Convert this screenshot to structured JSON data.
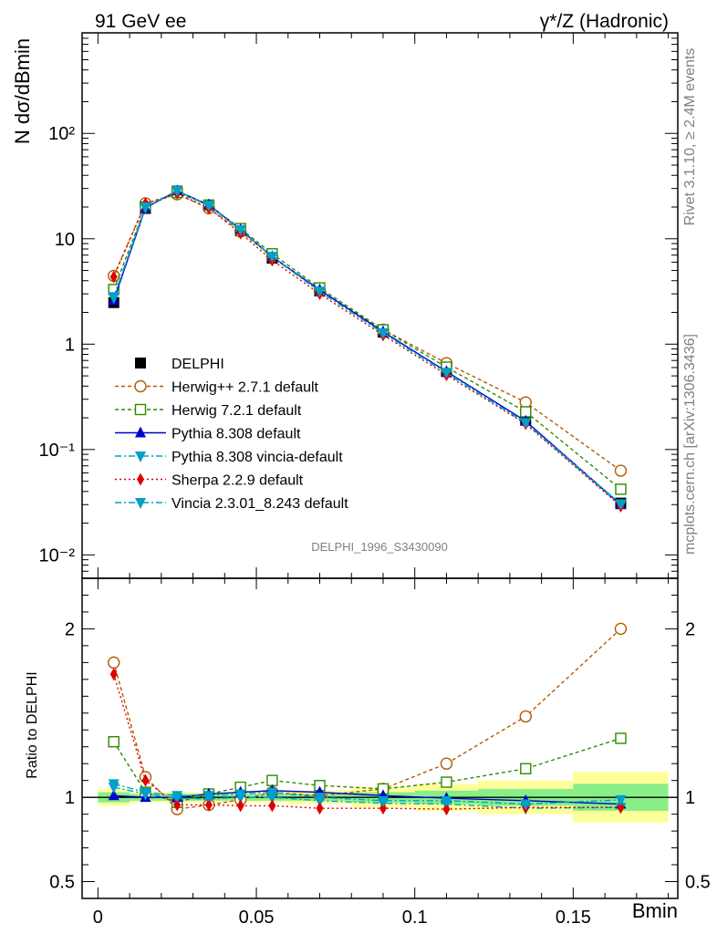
{
  "header": {
    "left": "91 GeV ee",
    "right": "γ*/Z (Hadronic)"
  },
  "side_labels": {
    "rivet": "Rivet 3.1.10, ≥ 2.4M events",
    "mcplots": "mcplots.cern.ch [arXiv:1306.3436]"
  },
  "analysis_label": "DELPHI_1996_S3430090",
  "chart_data": [
    {
      "type": "line",
      "panel": "main",
      "ylabel": "N dσ/dBmin",
      "yscale": "log",
      "ylim": [
        0.006,
        900
      ],
      "xlim": [
        -0.005,
        0.183
      ],
      "y_ticks": [
        {
          "value": 0.01,
          "label": "10⁻²"
        },
        {
          "value": 0.1,
          "label": "10⁻¹"
        },
        {
          "value": 1,
          "label": "1"
        },
        {
          "value": 10,
          "label": "10"
        },
        {
          "value": 100,
          "label": "10²"
        }
      ],
      "x": [
        0.005,
        0.015,
        0.025,
        0.035,
        0.045,
        0.055,
        0.07,
        0.09,
        0.11,
        0.135,
        0.165
      ],
      "series": [
        {
          "name": "DELPHI",
          "color": "#000000",
          "marker": "square-filled",
          "dash": "none",
          "values": [
            2.48,
            19.4,
            28.3,
            20.4,
            11.9,
            6.55,
            3.2,
            1.3,
            0.55,
            0.19,
            0.031
          ]
        },
        {
          "name": "Herwig++ 2.7.1 default",
          "color": "#b35a00",
          "marker": "circle-open",
          "dash": "4,3",
          "values": [
            4.45,
            21.7,
            26.4,
            19.5,
            11.7,
            6.75,
            3.22,
            1.37,
            0.66,
            0.28,
            0.063
          ]
        },
        {
          "name": "Herwig 7.2.1 default",
          "color": "#2f8a00",
          "marker": "square-open",
          "dash": "4,3",
          "values": [
            3.3,
            20.0,
            27.5,
            20.9,
            12.5,
            7.2,
            3.42,
            1.37,
            0.605,
            0.228,
            0.042
          ]
        },
        {
          "name": "Pythia 8.308 default",
          "color": "#0000cc",
          "marker": "triangle-up",
          "dash": "none",
          "values": [
            2.6,
            19.7,
            28.5,
            21.0,
            12.2,
            6.75,
            3.28,
            1.31,
            0.55,
            0.186,
            0.03
          ]
        },
        {
          "name": "Pythia 8.308 vincia-default",
          "color": "#00a0c8",
          "marker": "triangle-down",
          "dash": "7,3,2,3",
          "values": [
            2.75,
            19.9,
            28.4,
            20.5,
            12.1,
            6.7,
            3.15,
            1.27,
            0.53,
            0.178,
            0.0295
          ]
        },
        {
          "name": "Sherpa 2.2.9 default",
          "color": "#e00000",
          "marker": "diamond",
          "dash": "2,3",
          "values": [
            4.35,
            21.6,
            27.0,
            19.5,
            11.3,
            6.25,
            3.0,
            1.22,
            0.51,
            0.175,
            0.029
          ]
        },
        {
          "name": "Vincia 2.3.01_8.243 default",
          "color": "#00a0c8",
          "marker": "triangle-down",
          "dash": "7,3,2,3",
          "values": [
            2.82,
            20.0,
            28.6,
            20.8,
            12.2,
            6.8,
            3.18,
            1.28,
            0.54,
            0.18,
            0.0305
          ]
        }
      ]
    },
    {
      "type": "line",
      "panel": "ratio",
      "xlabel": "Bmin",
      "ylabel": "Ratio to DELPHI",
      "ylim": [
        0.4,
        2.3
      ],
      "xlim": [
        -0.005,
        0.183
      ],
      "x_ticks": [
        {
          "value": 0,
          "label": "0"
        },
        {
          "value": 0.05,
          "label": "0.05"
        },
        {
          "value": 0.1,
          "label": "0.1"
        },
        {
          "value": 0.15,
          "label": "0.15"
        }
      ],
      "y_ticks": [
        {
          "value": 0.5,
          "label": "0.5"
        },
        {
          "value": 1,
          "label": "1"
        },
        {
          "value": 2,
          "label": "2"
        }
      ],
      "bands": {
        "bin_edges": [
          0,
          0.01,
          0.02,
          0.03,
          0.04,
          0.05,
          0.06,
          0.08,
          0.1,
          0.12,
          0.15,
          0.18
        ],
        "inner_halfwidth": [
          0.03,
          0.02,
          0.02,
          0.02,
          0.02,
          0.02,
          0.02,
          0.03,
          0.04,
          0.05,
          0.08
        ],
        "outer_halfwidth": [
          0.05,
          0.03,
          0.03,
          0.03,
          0.03,
          0.03,
          0.04,
          0.06,
          0.08,
          0.1,
          0.15
        ],
        "inner_color": "#88ee88",
        "outer_color": "#ffff99"
      },
      "x": [
        0.005,
        0.015,
        0.025,
        0.035,
        0.045,
        0.055,
        0.07,
        0.09,
        0.11,
        0.135,
        0.165
      ],
      "series": [
        {
          "name": "Herwig++ 2.7.1 default",
          "color": "#b35a00",
          "marker": "circle-open",
          "dash": "4,3",
          "values": [
            1.8,
            1.12,
            0.93,
            0.955,
            0.985,
            1.03,
            1.01,
            1.05,
            1.2,
            1.48,
            2.0
          ]
        },
        {
          "name": "Herwig 7.2.1 default",
          "color": "#2f8a00",
          "marker": "square-open",
          "dash": "4,3",
          "values": [
            1.33,
            1.03,
            0.97,
            1.02,
            1.06,
            1.1,
            1.07,
            1.05,
            1.09,
            1.17,
            1.35
          ]
        },
        {
          "name": "Pythia 8.308 default",
          "color": "#0000cc",
          "marker": "triangle-up",
          "dash": "none",
          "values": [
            1.01,
            1.0,
            1.0,
            1.02,
            1.03,
            1.04,
            1.03,
            1.01,
            0.995,
            0.98,
            0.96
          ]
        },
        {
          "name": "Pythia 8.308 vincia-default",
          "color": "#00a0c8",
          "marker": "triangle-down",
          "dash": "7,3,2,3",
          "values": [
            1.06,
            1.02,
            0.995,
            0.99,
            1.0,
            1.0,
            0.98,
            0.965,
            0.96,
            0.935,
            0.94
          ]
        },
        {
          "name": "Sherpa 2.2.9 default",
          "color": "#e00000",
          "marker": "diamond",
          "dash": "2,3",
          "values": [
            1.73,
            1.1,
            0.955,
            0.955,
            0.95,
            0.95,
            0.935,
            0.935,
            0.93,
            0.94,
            0.94
          ]
        },
        {
          "name": "Vincia 2.3.01_8.243 default",
          "color": "#00a0c8",
          "marker": "triangle-down",
          "dash": "7,3,2,3",
          "values": [
            1.08,
            1.03,
            1.01,
            1.01,
            1.02,
            1.03,
            1.0,
            0.98,
            0.98,
            0.96,
            0.985
          ]
        }
      ]
    }
  ]
}
